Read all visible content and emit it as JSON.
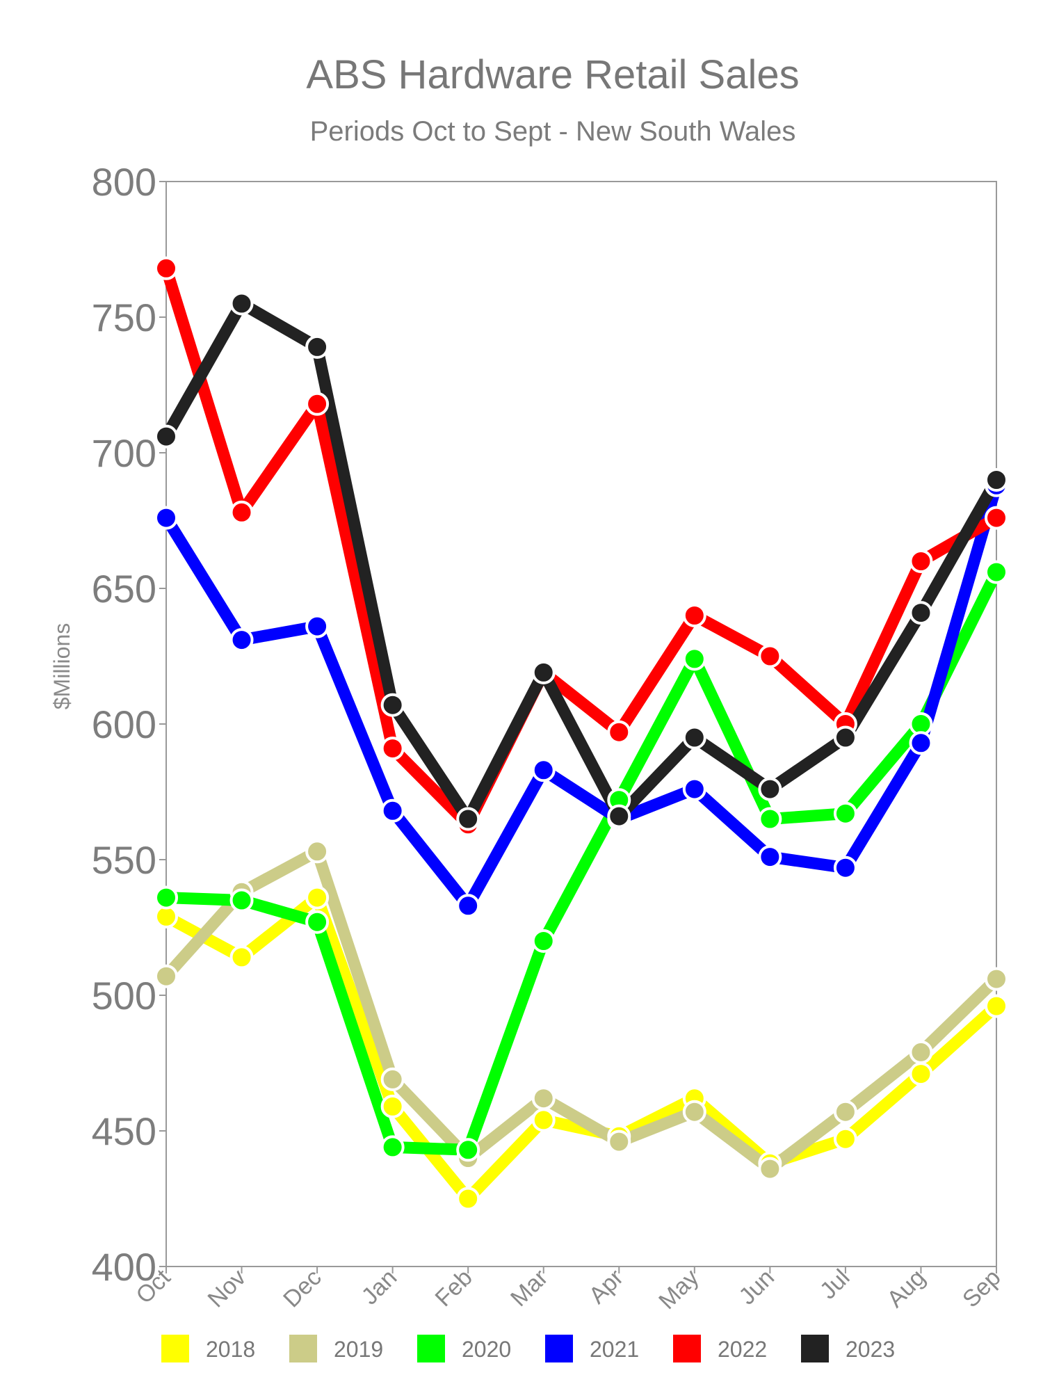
{
  "chart_data": {
    "type": "line",
    "title": "ABS Hardware Retail Sales",
    "subtitle": "Periods Oct to Sept - New South Wales",
    "xlabel": "",
    "ylabel": "$Millions",
    "ylim": [
      400,
      800
    ],
    "yticks": [
      "800",
      "750",
      "700",
      "650",
      "600",
      "550",
      "500",
      "450",
      "400"
    ],
    "categories": [
      "Oct",
      "Nov",
      "Dec",
      "Jan",
      "Feb",
      "Mar",
      "Apr",
      "May",
      "Jun",
      "Jul",
      "Aug",
      "Sep"
    ],
    "legend_position": "bottom",
    "grid": false,
    "series": [
      {
        "name": "2018",
        "color": "#ffff00",
        "values": [
          529,
          514,
          536,
          459,
          425,
          454,
          448,
          462,
          438,
          447,
          471,
          496
        ]
      },
      {
        "name": "2019",
        "color": "#cccc88",
        "values": [
          507,
          538,
          553,
          469,
          440,
          462,
          446,
          457,
          436,
          457,
          479,
          506
        ]
      },
      {
        "name": "2020",
        "color": "#00ff00",
        "values": [
          536,
          535,
          527,
          444,
          443,
          520,
          572,
          624,
          565,
          567,
          600,
          656
        ]
      },
      {
        "name": "2021",
        "color": "#0000ff",
        "values": [
          676,
          631,
          636,
          568,
          533,
          583,
          565,
          576,
          551,
          547,
          593,
          688
        ]
      },
      {
        "name": "2022",
        "color": "#ff0000",
        "values": [
          768,
          678,
          718,
          591,
          563,
          619,
          597,
          640,
          625,
          600,
          660,
          676
        ]
      },
      {
        "name": "2023",
        "color": "#222222",
        "values": [
          706,
          755,
          739,
          607,
          565,
          619,
          566,
          595,
          576,
          595,
          641,
          690
        ]
      }
    ]
  }
}
